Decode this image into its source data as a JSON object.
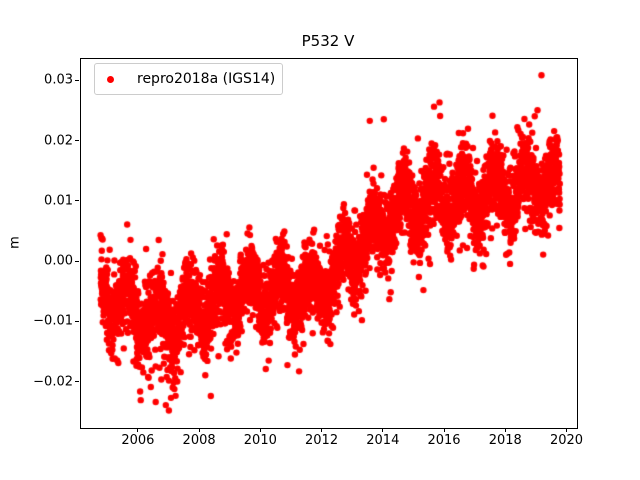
{
  "window": {
    "background": "#ffffff"
  },
  "chart_data": {
    "type": "scatter",
    "title": "P532 V",
    "xlabel": "",
    "ylabel": "m",
    "grid": false,
    "legend": {
      "position": "upper left",
      "entries": [
        {
          "label": "repro2018a (IGS14)",
          "marker": "circle",
          "color": "#ff0000"
        }
      ]
    },
    "xlim": [
      2004.11,
      2020.31
    ],
    "ylim": [
      -0.0275,
      0.0337
    ],
    "xticks": {
      "values": [
        2006,
        2008,
        2010,
        2012,
        2014,
        2016,
        2018,
        2020
      ],
      "labels": [
        "2006",
        "2008",
        "2010",
        "2012",
        "2014",
        "2016",
        "2018",
        "2020"
      ]
    },
    "yticks": {
      "values": [
        -0.02,
        -0.01,
        0.0,
        0.01,
        0.02,
        0.03
      ],
      "labels": [
        "−0.02",
        "−0.01",
        "0.00",
        "0.01",
        "0.02",
        "0.03"
      ]
    },
    "series": [
      {
        "name": "repro2018a (IGS14)",
        "color": "#ff0000",
        "marker_radius_px": 3.2,
        "sampling": "synthetic-daily",
        "generator": {
          "seed": 7,
          "start": 2004.75,
          "end": 2019.75,
          "points_per_year": 330,
          "trend": [
            [
              2004.75,
              -0.0045
            ],
            [
              2005.2,
              -0.006
            ],
            [
              2005.9,
              -0.008
            ],
            [
              2006.6,
              -0.0093
            ],
            [
              2007.4,
              -0.0088
            ],
            [
              2008.1,
              -0.0072
            ],
            [
              2008.9,
              -0.0055
            ],
            [
              2009.7,
              -0.0045
            ],
            [
              2010.6,
              -0.0048
            ],
            [
              2011.4,
              -0.005
            ],
            [
              2012.0,
              -0.0038
            ],
            [
              2012.7,
              -0.0002
            ],
            [
              2013.3,
              0.0035
            ],
            [
              2014.0,
              0.0068
            ],
            [
              2014.6,
              0.0093
            ],
            [
              2015.1,
              0.01
            ],
            [
              2016.0,
              0.0108
            ],
            [
              2017.0,
              0.0108
            ],
            [
              2018.0,
              0.0118
            ],
            [
              2018.8,
              0.0133
            ],
            [
              2019.35,
              0.0138
            ],
            [
              2019.75,
              0.0105
            ]
          ],
          "seasonal": {
            "amplitude": 0.0032,
            "peak_phase": 0.62
          },
          "noise_std": 0.0029,
          "outliers": {
            "prob": 0.05,
            "base": 0.003,
            "scale": 0.006,
            "negative_bias": 0.68
          },
          "deep_windows": [
            [
              2006.25,
              2007.3,
              0.04,
              0.012
            ],
            [
              2008.2,
              2008.6,
              0.03,
              0.009
            ],
            [
              2011.8,
              2012.7,
              0.025,
              0.008
            ],
            [
              2005.0,
              2005.6,
              0.02,
              0.008
            ]
          ]
        },
        "extreme_points": [
          [
            2019.15,
            0.031
          ],
          [
            2019.02,
            0.0252
          ],
          [
            2018.93,
            0.0242
          ],
          [
            2015.82,
            0.0265
          ],
          [
            2015.64,
            0.0258
          ],
          [
            2017.55,
            0.0243
          ],
          [
            2014.0,
            0.0237
          ],
          [
            2013.45,
            0.0145
          ],
          [
            2006.98,
            -0.0246
          ],
          [
            2006.88,
            -0.0237
          ],
          [
            2007.05,
            -0.0225
          ],
          [
            2006.55,
            -0.0232
          ],
          [
            2008.35,
            -0.0222
          ]
        ]
      }
    ]
  }
}
